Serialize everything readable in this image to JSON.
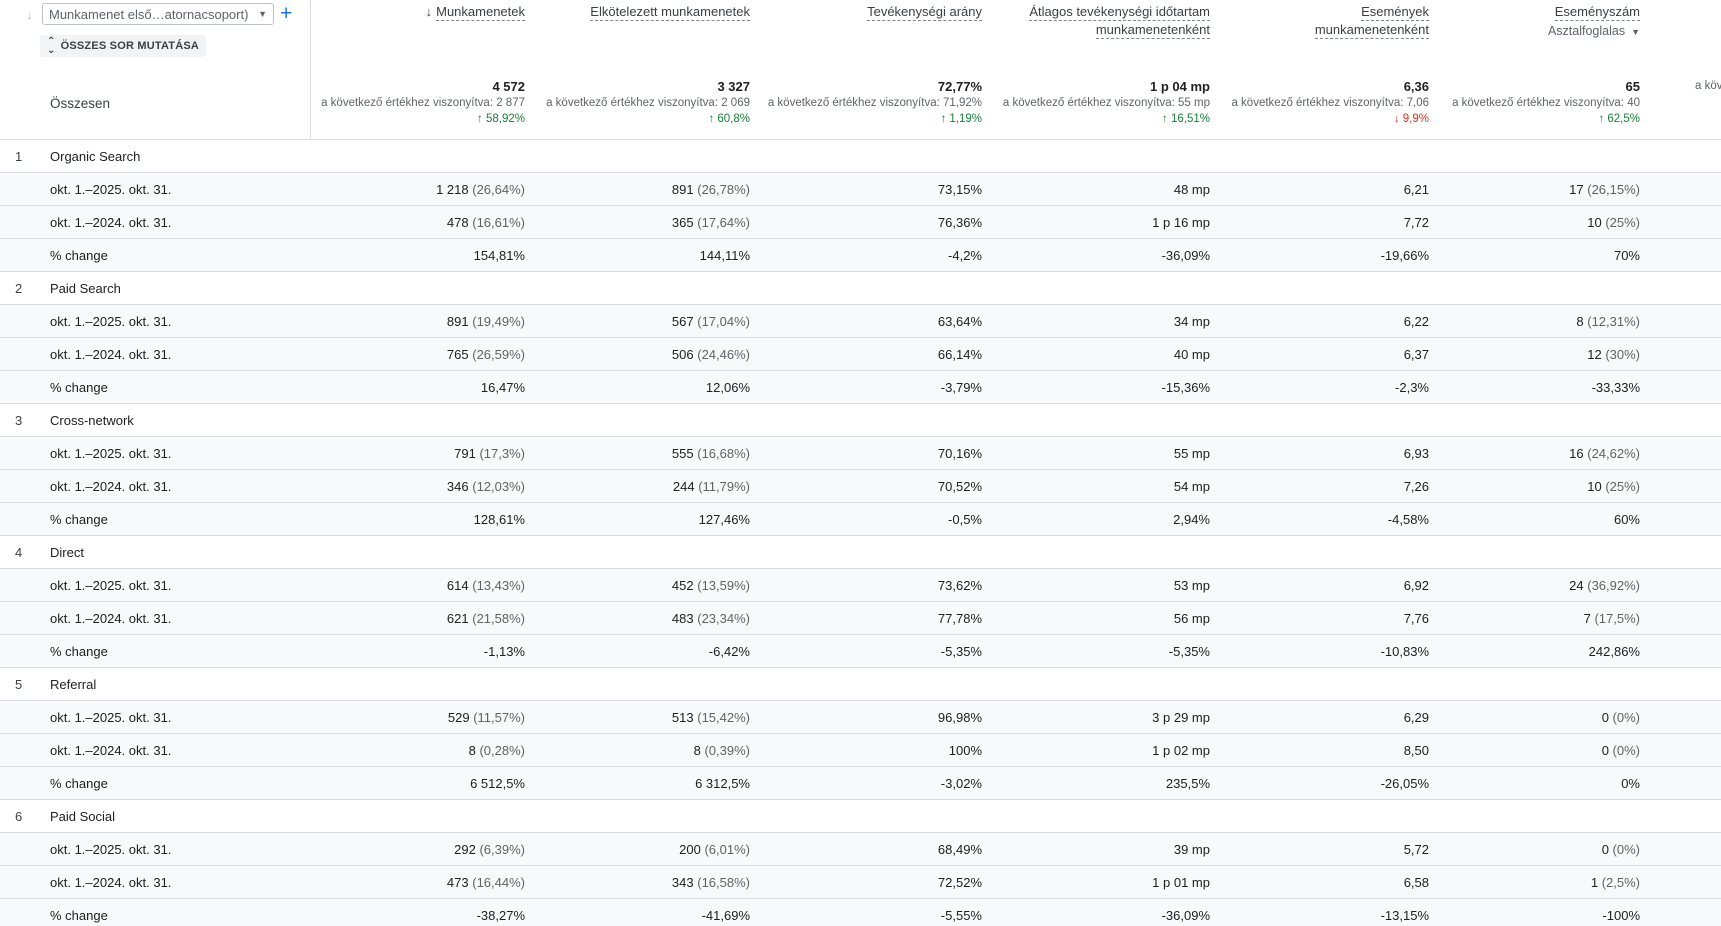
{
  "dimension": {
    "label": "Munkamenet első…atornacsoport)",
    "add_label": "+"
  },
  "show_all_label": "ÖSSZES SOR MUTATÁSA",
  "total_label": "Összesen",
  "columns": [
    {
      "title1": "Munkamenetek",
      "title2": "",
      "sorted": true,
      "total": "4 572",
      "compare": "a következő értékhez viszonyítva: 2 877",
      "change": "↑ 58,92%",
      "dir": "up"
    },
    {
      "title1": "Elkötelezett munkamenetek",
      "title2": "",
      "total": "3 327",
      "compare": "a következő értékhez viszonyítva: 2 069",
      "change": "↑ 60,8%",
      "dir": "up"
    },
    {
      "title1": "Tevékenységi arány",
      "title2": "",
      "total": "72,77%",
      "compare": "a következő értékhez viszonyítva: 71,92%",
      "change": "↑ 1,19%",
      "dir": "up"
    },
    {
      "title1": "Átlagos tevékenységi időtartam",
      "title2": "munkamenetenként",
      "total": "1 p 04 mp",
      "compare": "a következő értékhez viszonyítva: 55 mp",
      "change": "↑ 16,51%",
      "dir": "up"
    },
    {
      "title1": "Események",
      "title2": "munkamenetenként",
      "total": "6,36",
      "compare": "a következő értékhez viszonyítva: 7,06",
      "change": "↓ 9,9%",
      "dir": "dn"
    },
    {
      "title1": "Eseményszám",
      "title2": "",
      "subselect": "Asztalfoglalas",
      "total": "65",
      "compare": "a következő értékhez viszonyítva: 40",
      "change": "↑ 62,5%",
      "dir": "up"
    },
    {
      "title1": "",
      "title2": "",
      "total": "",
      "compare": "a következ",
      "change": "",
      "dir": "up"
    }
  ],
  "groups": [
    {
      "idx": "1",
      "name": "Organic Search",
      "rows": [
        {
          "label": "okt. 1.–2025. okt. 31.",
          "cells": [
            [
              "1 218",
              "(26,64%)"
            ],
            [
              "891",
              "(26,78%)"
            ],
            [
              "73,15%",
              ""
            ],
            [
              "48 mp",
              ""
            ],
            [
              "6,21",
              ""
            ],
            [
              "17",
              "(26,15%)"
            ]
          ]
        },
        {
          "label": "okt. 1.–2024. okt. 31.",
          "cells": [
            [
              "478",
              "(16,61%)"
            ],
            [
              "365",
              "(17,64%)"
            ],
            [
              "76,36%",
              ""
            ],
            [
              "1 p 16 mp",
              ""
            ],
            [
              "7,72",
              ""
            ],
            [
              "10",
              "(25%)"
            ]
          ]
        },
        {
          "label": "% change",
          "cells": [
            [
              "154,81%",
              ""
            ],
            [
              "144,11%",
              ""
            ],
            [
              "-4,2%",
              ""
            ],
            [
              "-36,09%",
              ""
            ],
            [
              "-19,66%",
              ""
            ],
            [
              "70%",
              ""
            ]
          ]
        }
      ]
    },
    {
      "idx": "2",
      "name": "Paid Search",
      "rows": [
        {
          "label": "okt. 1.–2025. okt. 31.",
          "cells": [
            [
              "891",
              "(19,49%)"
            ],
            [
              "567",
              "(17,04%)"
            ],
            [
              "63,64%",
              ""
            ],
            [
              "34 mp",
              ""
            ],
            [
              "6,22",
              ""
            ],
            [
              "8",
              "(12,31%)"
            ]
          ]
        },
        {
          "label": "okt. 1.–2024. okt. 31.",
          "cells": [
            [
              "765",
              "(26,59%)"
            ],
            [
              "506",
              "(24,46%)"
            ],
            [
              "66,14%",
              ""
            ],
            [
              "40 mp",
              ""
            ],
            [
              "6,37",
              ""
            ],
            [
              "12",
              "(30%)"
            ]
          ]
        },
        {
          "label": "% change",
          "cells": [
            [
              "16,47%",
              ""
            ],
            [
              "12,06%",
              ""
            ],
            [
              "-3,79%",
              ""
            ],
            [
              "-15,36%",
              ""
            ],
            [
              "-2,3%",
              ""
            ],
            [
              "-33,33%",
              ""
            ]
          ]
        }
      ]
    },
    {
      "idx": "3",
      "name": "Cross-network",
      "rows": [
        {
          "label": "okt. 1.–2025. okt. 31.",
          "cells": [
            [
              "791",
              "(17,3%)"
            ],
            [
              "555",
              "(16,68%)"
            ],
            [
              "70,16%",
              ""
            ],
            [
              "55 mp",
              ""
            ],
            [
              "6,93",
              ""
            ],
            [
              "16",
              "(24,62%)"
            ]
          ]
        },
        {
          "label": "okt. 1.–2024. okt. 31.",
          "cells": [
            [
              "346",
              "(12,03%)"
            ],
            [
              "244",
              "(11,79%)"
            ],
            [
              "70,52%",
              ""
            ],
            [
              "54 mp",
              ""
            ],
            [
              "7,26",
              ""
            ],
            [
              "10",
              "(25%)"
            ]
          ]
        },
        {
          "label": "% change",
          "cells": [
            [
              "128,61%",
              ""
            ],
            [
              "127,46%",
              ""
            ],
            [
              "-0,5%",
              ""
            ],
            [
              "2,94%",
              ""
            ],
            [
              "-4,58%",
              ""
            ],
            [
              "60%",
              ""
            ]
          ]
        }
      ]
    },
    {
      "idx": "4",
      "name": "Direct",
      "rows": [
        {
          "label": "okt. 1.–2025. okt. 31.",
          "cells": [
            [
              "614",
              "(13,43%)"
            ],
            [
              "452",
              "(13,59%)"
            ],
            [
              "73,62%",
              ""
            ],
            [
              "53 mp",
              ""
            ],
            [
              "6,92",
              ""
            ],
            [
              "24",
              "(36,92%)"
            ]
          ]
        },
        {
          "label": "okt. 1.–2024. okt. 31.",
          "cells": [
            [
              "621",
              "(21,58%)"
            ],
            [
              "483",
              "(23,34%)"
            ],
            [
              "77,78%",
              ""
            ],
            [
              "56 mp",
              ""
            ],
            [
              "7,76",
              ""
            ],
            [
              "7",
              "(17,5%)"
            ]
          ]
        },
        {
          "label": "% change",
          "cells": [
            [
              "-1,13%",
              ""
            ],
            [
              "-6,42%",
              ""
            ],
            [
              "-5,35%",
              ""
            ],
            [
              "-5,35%",
              ""
            ],
            [
              "-10,83%",
              ""
            ],
            [
              "242,86%",
              ""
            ]
          ]
        }
      ]
    },
    {
      "idx": "5",
      "name": "Referral",
      "rows": [
        {
          "label": "okt. 1.–2025. okt. 31.",
          "cells": [
            [
              "529",
              "(11,57%)"
            ],
            [
              "513",
              "(15,42%)"
            ],
            [
              "96,98%",
              ""
            ],
            [
              "3 p 29 mp",
              ""
            ],
            [
              "6,29",
              ""
            ],
            [
              "0",
              "(0%)"
            ]
          ]
        },
        {
          "label": "okt. 1.–2024. okt. 31.",
          "cells": [
            [
              "8",
              "(0,28%)"
            ],
            [
              "8",
              "(0,39%)"
            ],
            [
              "100%",
              ""
            ],
            [
              "1 p 02 mp",
              ""
            ],
            [
              "8,50",
              ""
            ],
            [
              "0",
              "(0%)"
            ]
          ]
        },
        {
          "label": "% change",
          "cells": [
            [
              "6 512,5%",
              ""
            ],
            [
              "6 312,5%",
              ""
            ],
            [
              "-3,02%",
              ""
            ],
            [
              "235,5%",
              ""
            ],
            [
              "-26,05%",
              ""
            ],
            [
              "0%",
              ""
            ]
          ]
        }
      ]
    },
    {
      "idx": "6",
      "name": "Paid Social",
      "rows": [
        {
          "label": "okt. 1.–2025. okt. 31.",
          "cells": [
            [
              "292",
              "(6,39%)"
            ],
            [
              "200",
              "(6,01%)"
            ],
            [
              "68,49%",
              ""
            ],
            [
              "39 mp",
              ""
            ],
            [
              "5,72",
              ""
            ],
            [
              "0",
              "(0%)"
            ]
          ]
        },
        {
          "label": "okt. 1.–2024. okt. 31.",
          "cells": [
            [
              "473",
              "(16,44%)"
            ],
            [
              "343",
              "(16,58%)"
            ],
            [
              "72,52%",
              ""
            ],
            [
              "1 p 01 mp",
              ""
            ],
            [
              "6,58",
              ""
            ],
            [
              "1",
              "(2,5%)"
            ]
          ]
        },
        {
          "label": "% change",
          "cells": [
            [
              "-38,27%",
              ""
            ],
            [
              "-41,69%",
              ""
            ],
            [
              "-5,55%",
              ""
            ],
            [
              "-36,09%",
              ""
            ],
            [
              "-13,15%",
              ""
            ],
            [
              "-100%",
              ""
            ]
          ]
        }
      ]
    }
  ]
}
